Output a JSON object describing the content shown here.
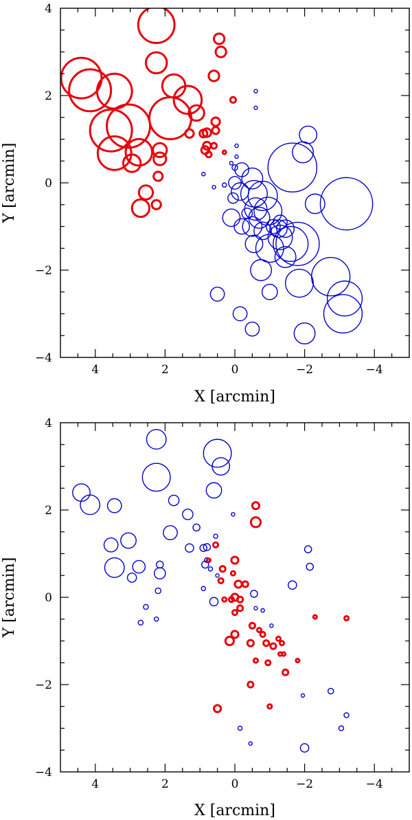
{
  "colors": {
    "red": "#e8000b",
    "blue": "#0000cc"
  },
  "chart_data": [
    {
      "type": "scatter",
      "name": "top-panel",
      "xlabel": "X [arcmin]",
      "ylabel": "Y [arcmin]",
      "xlim": [
        5,
        -5
      ],
      "ylim": [
        -4,
        4
      ],
      "xticks": [
        4,
        2,
        0,
        -2,
        -4
      ],
      "yticks": [
        -4,
        -2,
        0,
        2,
        4
      ],
      "xtick_labels": [
        "4",
        "2",
        "0",
        "−2",
        "−4"
      ],
      "ytick_labels": [
        "−4",
        "−2",
        "0",
        "2",
        "4"
      ],
      "series": [
        {
          "name": "red",
          "color": "red",
          "points": [
            {
              "x": 4.4,
              "y": 2.4,
              "r": 0.58
            },
            {
              "x": 4.15,
              "y": 2.12,
              "r": 0.6
            },
            {
              "x": 3.45,
              "y": 2.1,
              "r": 0.5
            },
            {
              "x": 3.55,
              "y": 1.2,
              "r": 0.6
            },
            {
              "x": 3.05,
              "y": 1.3,
              "r": 0.62
            },
            {
              "x": 3.45,
              "y": 0.68,
              "r": 0.48
            },
            {
              "x": 2.75,
              "y": 0.7,
              "r": 0.38
            },
            {
              "x": 2.95,
              "y": 0.45,
              "r": 0.25
            },
            {
              "x": 2.25,
              "y": 3.62,
              "r": 0.52
            },
            {
              "x": 2.25,
              "y": 2.75,
              "r": 0.3
            },
            {
              "x": 1.75,
              "y": 2.22,
              "r": 0.33
            },
            {
              "x": 1.85,
              "y": 1.48,
              "r": 0.6
            },
            {
              "x": 1.35,
              "y": 1.9,
              "r": 0.4
            },
            {
              "x": 1.1,
              "y": 1.6,
              "r": 0.22
            },
            {
              "x": 2.15,
              "y": 0.75,
              "r": 0.2
            },
            {
              "x": 2.15,
              "y": 0.55,
              "r": 0.18
            },
            {
              "x": 2.2,
              "y": 0.15,
              "r": 0.13
            },
            {
              "x": 2.55,
              "y": -0.22,
              "r": 0.2
            },
            {
              "x": 2.7,
              "y": -0.58,
              "r": 0.25
            },
            {
              "x": 2.25,
              "y": -0.5,
              "r": 0.13
            },
            {
              "x": 1.3,
              "y": 1.13,
              "r": 0.12
            },
            {
              "x": 0.9,
              "y": 1.13,
              "r": 0.11
            },
            {
              "x": 0.8,
              "y": 1.15,
              "r": 0.12
            },
            {
              "x": 0.8,
              "y": 0.85,
              "r": 0.11
            },
            {
              "x": 0.85,
              "y": 0.75,
              "r": 0.11
            },
            {
              "x": 0.75,
              "y": 0.65,
              "r": 0.08
            },
            {
              "x": 0.6,
              "y": 0.85,
              "r": 0.08
            },
            {
              "x": 0.55,
              "y": 1.2,
              "r": 0.1
            },
            {
              "x": 0.55,
              "y": 1.4,
              "r": 0.12
            },
            {
              "x": 0.6,
              "y": 2.45,
              "r": 0.15
            },
            {
              "x": 0.45,
              "y": 3.3,
              "r": 0.15
            },
            {
              "x": 0.4,
              "y": 3.0,
              "r": 0.15
            },
            {
              "x": 0.05,
              "y": 1.9,
              "r": 0.08
            },
            {
              "x": 0.3,
              "y": 0.7,
              "r": 0.05
            }
          ]
        },
        {
          "name": "blue",
          "color": "blue",
          "points": [
            {
              "x": -0.6,
              "y": 2.1,
              "r": 0.05
            },
            {
              "x": -0.6,
              "y": 1.72,
              "r": 0.04
            },
            {
              "x": -2.1,
              "y": 1.1,
              "r": 0.25
            },
            {
              "x": -1.95,
              "y": 0.7,
              "r": 0.3
            },
            {
              "x": -1.65,
              "y": 0.35,
              "r": 0.7
            },
            {
              "x": -3.2,
              "y": -0.48,
              "r": 0.75
            },
            {
              "x": -2.3,
              "y": -0.48,
              "r": 0.28
            },
            {
              "x": -0.05,
              "y": 0.85,
              "r": 0.05
            },
            {
              "x": -0.05,
              "y": 0.6,
              "r": 0.05
            },
            {
              "x": 0.1,
              "y": 0.45,
              "r": 0.05
            },
            {
              "x": 0.0,
              "y": 0.35,
              "r": 0.08
            },
            {
              "x": 0.3,
              "y": -0.05,
              "r": 0.06
            },
            {
              "x": 0.6,
              "y": -0.1,
              "r": 0.05
            },
            {
              "x": 0.9,
              "y": 0.2,
              "r": 0.05
            },
            {
              "x": -0.2,
              "y": 0.3,
              "r": 0.2
            },
            {
              "x": -0.5,
              "y": 0.1,
              "r": 0.3
            },
            {
              "x": 0.0,
              "y": 0.0,
              "r": 0.18
            },
            {
              "x": -0.15,
              "y": -0.2,
              "r": 0.25
            },
            {
              "x": 0.05,
              "y": -0.35,
              "r": 0.15
            },
            {
              "x": -0.55,
              "y": -0.25,
              "r": 0.38
            },
            {
              "x": -0.8,
              "y": -0.3,
              "r": 0.42
            },
            {
              "x": -0.6,
              "y": -0.6,
              "r": 0.32
            },
            {
              "x": -0.7,
              "y": -0.8,
              "r": 0.3
            },
            {
              "x": -0.95,
              "y": -0.65,
              "r": 0.4
            },
            {
              "x": -0.35,
              "y": -0.7,
              "r": 0.15
            },
            {
              "x": -0.5,
              "y": -1.0,
              "r": 0.28
            },
            {
              "x": -0.8,
              "y": -1.1,
              "r": 0.25
            },
            {
              "x": 0.1,
              "y": -0.8,
              "r": 0.25
            },
            {
              "x": -0.2,
              "y": -1.0,
              "r": 0.22
            },
            {
              "x": -0.55,
              "y": -1.4,
              "r": 0.25
            },
            {
              "x": -1.1,
              "y": -1.0,
              "r": 0.2
            },
            {
              "x": -1.25,
              "y": -1.05,
              "r": 0.25
            },
            {
              "x": -1.3,
              "y": -0.9,
              "r": 0.2
            },
            {
              "x": -1.45,
              "y": -1.05,
              "r": 0.25
            },
            {
              "x": -1.3,
              "y": -1.25,
              "r": 0.35
            },
            {
              "x": -1.6,
              "y": -1.4,
              "r": 0.5
            },
            {
              "x": -1.0,
              "y": -1.5,
              "r": 0.4
            },
            {
              "x": -1.45,
              "y": -1.7,
              "r": 0.3
            },
            {
              "x": -1.8,
              "y": -1.4,
              "r": 0.62
            },
            {
              "x": -0.75,
              "y": -2.0,
              "r": 0.3
            },
            {
              "x": -1.0,
              "y": -2.5,
              "r": 0.22
            },
            {
              "x": -1.85,
              "y": -2.3,
              "r": 0.4
            },
            {
              "x": -2.75,
              "y": -2.15,
              "r": 0.55
            },
            {
              "x": -3.15,
              "y": -2.65,
              "r": 0.5
            },
            {
              "x": -3.1,
              "y": -3.0,
              "r": 0.55
            },
            {
              "x": -2.0,
              "y": -3.45,
              "r": 0.3
            },
            {
              "x": 0.5,
              "y": -2.55,
              "r": 0.2
            },
            {
              "x": -0.15,
              "y": -3.0,
              "r": 0.2
            },
            {
              "x": -0.5,
              "y": -3.35,
              "r": 0.2
            }
          ]
        }
      ]
    },
    {
      "type": "scatter",
      "name": "bottom-panel",
      "xlabel": "X [arcmin]",
      "ylabel": "Y [arcmin]",
      "xlim": [
        5,
        -5
      ],
      "ylim": [
        -4,
        4
      ],
      "xticks": [
        4,
        2,
        0,
        -2,
        -4
      ],
      "yticks": [
        -4,
        -2,
        0,
        2,
        4
      ],
      "xtick_labels": [
        "4",
        "2",
        "0",
        "−2",
        "−4"
      ],
      "ytick_labels": [
        "−4",
        "−2",
        "0",
        "2",
        "4"
      ],
      "series": [
        {
          "name": "blue",
          "color": "blue",
          "points": [
            {
              "x": 2.25,
              "y": 3.62,
              "r": 0.28
            },
            {
              "x": 2.25,
              "y": 2.75,
              "r": 0.4
            },
            {
              "x": 0.5,
              "y": 3.3,
              "r": 0.4
            },
            {
              "x": 0.4,
              "y": 3.0,
              "r": 0.25
            },
            {
              "x": 0.6,
              "y": 2.45,
              "r": 0.22
            },
            {
              "x": 4.4,
              "y": 2.4,
              "r": 0.25
            },
            {
              "x": 4.15,
              "y": 2.12,
              "r": 0.28
            },
            {
              "x": 3.45,
              "y": 2.1,
              "r": 0.2
            },
            {
              "x": 1.75,
              "y": 2.22,
              "r": 0.15
            },
            {
              "x": 1.85,
              "y": 1.48,
              "r": 0.2
            },
            {
              "x": 1.35,
              "y": 1.9,
              "r": 0.15
            },
            {
              "x": 1.1,
              "y": 1.6,
              "r": 0.1
            },
            {
              "x": 1.3,
              "y": 1.13,
              "r": 0.12
            },
            {
              "x": 0.9,
              "y": 1.13,
              "r": 0.1
            },
            {
              "x": 0.8,
              "y": 1.15,
              "r": 0.1
            },
            {
              "x": 3.55,
              "y": 1.2,
              "r": 0.2
            },
            {
              "x": 3.05,
              "y": 1.3,
              "r": 0.22
            },
            {
              "x": 3.45,
              "y": 0.68,
              "r": 0.28
            },
            {
              "x": 2.75,
              "y": 0.7,
              "r": 0.18
            },
            {
              "x": 2.95,
              "y": 0.45,
              "r": 0.13
            },
            {
              "x": 2.15,
              "y": 0.75,
              "r": 0.1
            },
            {
              "x": 2.15,
              "y": 0.55,
              "r": 0.16
            },
            {
              "x": 2.2,
              "y": 0.15,
              "r": 0.08
            },
            {
              "x": 2.55,
              "y": -0.22,
              "r": 0.07
            },
            {
              "x": 2.7,
              "y": -0.58,
              "r": 0.07
            },
            {
              "x": 2.25,
              "y": -0.5,
              "r": 0.06
            },
            {
              "x": 0.8,
              "y": 0.85,
              "r": 0.07
            },
            {
              "x": 0.85,
              "y": 0.75,
              "r": 0.1
            },
            {
              "x": 0.7,
              "y": 0.65,
              "r": 0.06
            },
            {
              "x": 0.55,
              "y": 1.4,
              "r": 0.06
            },
            {
              "x": 0.05,
              "y": 1.9,
              "r": 0.05
            },
            {
              "x": 0.9,
              "y": 0.2,
              "r": 0.06
            },
            {
              "x": 0.6,
              "y": -0.1,
              "r": 0.12
            },
            {
              "x": 0.05,
              "y": 0.55,
              "r": 0.06
            },
            {
              "x": 0.5,
              "y": 0.5,
              "r": 0.05
            },
            {
              "x": -2.1,
              "y": 1.1,
              "r": 0.1
            },
            {
              "x": -2.15,
              "y": 0.7,
              "r": 0.1
            },
            {
              "x": -1.65,
              "y": 0.28,
              "r": 0.12
            },
            {
              "x": -0.55,
              "y": 0.08,
              "r": 0.1
            },
            {
              "x": -0.6,
              "y": -0.25,
              "r": 0.05
            },
            {
              "x": -0.8,
              "y": -0.3,
              "r": 0.05
            },
            {
              "x": -1.05,
              "y": -0.65,
              "r": 0.05
            },
            {
              "x": -1.95,
              "y": -2.25,
              "r": 0.04
            },
            {
              "x": -2.75,
              "y": -2.15,
              "r": 0.08
            },
            {
              "x": -3.2,
              "y": -2.7,
              "r": 0.07
            },
            {
              "x": -3.05,
              "y": -3.0,
              "r": 0.07
            },
            {
              "x": -2.0,
              "y": -3.45,
              "r": 0.12
            },
            {
              "x": -0.15,
              "y": -3.0,
              "r": 0.06
            },
            {
              "x": -0.45,
              "y": -3.35,
              "r": 0.05
            }
          ]
        },
        {
          "name": "red",
          "color": "red",
          "points": [
            {
              "x": -0.6,
              "y": 2.1,
              "r": 0.1
            },
            {
              "x": -0.6,
              "y": 1.72,
              "r": 0.14
            },
            {
              "x": 0.55,
              "y": 1.2,
              "r": 0.07
            },
            {
              "x": 0.75,
              "y": 0.85,
              "r": 0.05
            },
            {
              "x": 0.0,
              "y": 0.85,
              "r": 0.1
            },
            {
              "x": 0.35,
              "y": 0.65,
              "r": 0.08
            },
            {
              "x": 0.05,
              "y": 0.55,
              "r": 0.06
            },
            {
              "x": 0.4,
              "y": 0.38,
              "r": 0.07
            },
            {
              "x": -0.1,
              "y": 0.3,
              "r": 0.1
            },
            {
              "x": -0.3,
              "y": 0.3,
              "r": 0.08
            },
            {
              "x": 0.0,
              "y": 0.0,
              "r": 0.1
            },
            {
              "x": 0.1,
              "y": -0.05,
              "r": 0.07
            },
            {
              "x": -0.15,
              "y": -0.05,
              "r": 0.08
            },
            {
              "x": -0.15,
              "y": -0.25,
              "r": 0.08
            },
            {
              "x": 0.3,
              "y": -0.05,
              "r": 0.06
            },
            {
              "x": 0.0,
              "y": -0.35,
              "r": 0.07
            },
            {
              "x": -0.5,
              "y": -0.65,
              "r": 0.08
            },
            {
              "x": -0.7,
              "y": -0.75,
              "r": 0.06
            },
            {
              "x": -0.8,
              "y": -0.85,
              "r": 0.07
            },
            {
              "x": 0.0,
              "y": -0.85,
              "r": 0.1
            },
            {
              "x": 0.15,
              "y": -1.0,
              "r": 0.12
            },
            {
              "x": -0.45,
              "y": -1.05,
              "r": 0.09
            },
            {
              "x": -0.9,
              "y": -1.05,
              "r": 0.08
            },
            {
              "x": -1.1,
              "y": -1.12,
              "r": 0.08
            },
            {
              "x": -1.25,
              "y": -0.95,
              "r": 0.06
            },
            {
              "x": -1.35,
              "y": -1.05,
              "r": 0.06
            },
            {
              "x": -1.3,
              "y": -1.3,
              "r": 0.05
            },
            {
              "x": -1.4,
              "y": -1.3,
              "r": 0.05
            },
            {
              "x": -0.6,
              "y": -1.45,
              "r": 0.06
            },
            {
              "x": -0.95,
              "y": -1.5,
              "r": 0.07
            },
            {
              "x": -1.45,
              "y": -1.72,
              "r": 0.08
            },
            {
              "x": -1.8,
              "y": -1.45,
              "r": 0.05
            },
            {
              "x": -2.3,
              "y": -0.45,
              "r": 0.05
            },
            {
              "x": -3.2,
              "y": -0.48,
              "r": 0.06
            },
            {
              "x": -0.45,
              "y": -2.0,
              "r": 0.08
            },
            {
              "x": -1.0,
              "y": -2.5,
              "r": 0.06
            },
            {
              "x": 0.5,
              "y": -2.55,
              "r": 0.1
            }
          ]
        }
      ]
    }
  ]
}
